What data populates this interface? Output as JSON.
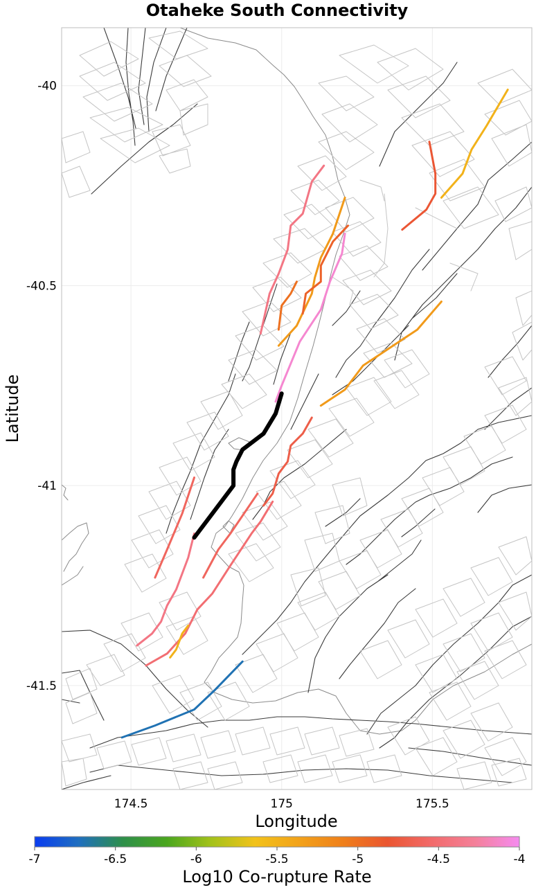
{
  "chart_data": {
    "type": "map",
    "title": "Otaheke South Connectivity",
    "xlabel": "Longitude",
    "ylabel": "Latitude",
    "xlim": [
      174.27,
      175.83
    ],
    "ylim": [
      -41.76,
      -39.855
    ],
    "xticks": [
      174.5,
      175,
      175.5
    ],
    "xtick_labels": [
      "174.5",
      "175",
      "175.5"
    ],
    "yticks": [
      -40,
      -40.5,
      -41,
      -41.5
    ],
    "ytick_labels": [
      "-40",
      "-40.5",
      "-41",
      "-41.5"
    ],
    "grid": true,
    "colorbar": {
      "label": "Log10 Co-rupture Rate",
      "range": [
        -7,
        -4
      ],
      "ticks": [
        -7,
        -6.5,
        -6,
        -5.5,
        -5,
        -4.5,
        -4
      ],
      "tick_labels": [
        "-7",
        "-6.5",
        "-6",
        "-5.5",
        "-5",
        "-4.5",
        "-4"
      ],
      "colors": [
        "#0a3cf0",
        "#1f6fbf",
        "#2e8f4a",
        "#4aa61e",
        "#a3c21a",
        "#f2c21a",
        "#f2a21a",
        "#ef7f1a",
        "#ea5530",
        "#f26a6a",
        "#f4809a",
        "#f58bf0"
      ]
    },
    "selected_fault": {
      "name": "Otaheke South",
      "color": "#000000",
      "points": [
        [
          175.0,
          -40.77
        ],
        [
          174.98,
          -40.82
        ],
        [
          174.94,
          -40.87
        ],
        [
          174.87,
          -40.91
        ],
        [
          174.85,
          -40.94
        ],
        [
          174.84,
          -40.96
        ],
        [
          174.84,
          -41.0
        ],
        [
          174.78,
          -41.06
        ],
        [
          174.71,
          -41.13
        ]
      ]
    },
    "corupture_faults": [
      {
        "log10_rate": -4.4,
        "points": [
          [
            175.14,
            -40.2
          ],
          [
            175.1,
            -40.24
          ],
          [
            175.07,
            -40.32
          ],
          [
            175.03,
            -40.35
          ],
          [
            175.02,
            -40.41
          ],
          [
            174.99,
            -40.47
          ],
          [
            174.96,
            -40.52
          ],
          [
            174.93,
            -40.62
          ]
        ]
      },
      {
        "log10_rate": -5.3,
        "points": [
          [
            175.21,
            -40.28
          ],
          [
            175.17,
            -40.37
          ],
          [
            175.13,
            -40.43
          ],
          [
            175.11,
            -40.48
          ],
          [
            175.1,
            -40.52
          ],
          [
            175.05,
            -40.6
          ],
          [
            174.99,
            -40.65
          ]
        ]
      },
      {
        "log10_rate": -4.9,
        "points": [
          [
            175.22,
            -40.35
          ],
          [
            175.17,
            -40.39
          ],
          [
            175.13,
            -40.45
          ],
          [
            175.13,
            -40.49
          ],
          [
            175.08,
            -40.52
          ],
          [
            175.07,
            -40.57
          ]
        ]
      },
      {
        "log10_rate": -4.1,
        "points": [
          [
            175.21,
            -40.37
          ],
          [
            175.2,
            -40.42
          ],
          [
            175.16,
            -40.49
          ],
          [
            175.13,
            -40.56
          ],
          [
            175.06,
            -40.64
          ],
          [
            175.0,
            -40.75
          ],
          [
            174.98,
            -40.79
          ]
        ]
      },
      {
        "log10_rate": -5.0,
        "points": [
          [
            175.05,
            -40.49
          ],
          [
            175.03,
            -40.52
          ],
          [
            175.0,
            -40.55
          ],
          [
            174.99,
            -40.61
          ]
        ]
      },
      {
        "log10_rate": -5.3,
        "points": [
          [
            175.53,
            -40.54
          ],
          [
            175.45,
            -40.61
          ],
          [
            175.39,
            -40.64
          ],
          [
            175.27,
            -40.7
          ],
          [
            175.21,
            -40.76
          ],
          [
            175.17,
            -40.78
          ],
          [
            175.13,
            -40.8
          ]
        ]
      },
      {
        "log10_rate": -4.7,
        "points": [
          [
            175.1,
            -40.83
          ],
          [
            175.07,
            -40.87
          ],
          [
            175.03,
            -40.9
          ],
          [
            175.02,
            -40.94
          ],
          [
            174.99,
            -40.97
          ],
          [
            174.97,
            -41.02
          ],
          [
            174.94,
            -41.05
          ]
        ]
      },
      {
        "log10_rate": -4.6,
        "points": [
          [
            174.92,
            -41.02
          ],
          [
            174.83,
            -41.12
          ],
          [
            174.79,
            -41.16
          ],
          [
            174.74,
            -41.23
          ]
        ]
      },
      {
        "log10_rate": -4.5,
        "points": [
          [
            174.97,
            -41.04
          ],
          [
            174.93,
            -41.09
          ],
          [
            174.9,
            -41.12
          ],
          [
            174.83,
            -41.2
          ],
          [
            174.77,
            -41.27
          ],
          [
            174.72,
            -41.31
          ],
          [
            174.68,
            -41.37
          ],
          [
            174.62,
            -41.42
          ],
          [
            174.55,
            -41.45
          ]
        ]
      },
      {
        "log10_rate": -4.6,
        "points": [
          [
            174.71,
            -40.98
          ],
          [
            174.67,
            -41.07
          ],
          [
            174.62,
            -41.16
          ],
          [
            174.58,
            -41.23
          ]
        ]
      },
      {
        "log10_rate": -4.4,
        "points": [
          [
            174.71,
            -41.12
          ],
          [
            174.69,
            -41.18
          ],
          [
            174.65,
            -41.26
          ],
          [
            174.62,
            -41.3
          ],
          [
            174.6,
            -41.34
          ],
          [
            174.57,
            -41.37
          ],
          [
            174.52,
            -41.4
          ]
        ]
      },
      {
        "log10_rate": -5.5,
        "points": [
          [
            174.69,
            -41.35
          ],
          [
            174.67,
            -41.37
          ],
          [
            174.65,
            -41.41
          ],
          [
            174.63,
            -41.43
          ]
        ]
      },
      {
        "log10_rate": -6.7,
        "points": [
          [
            174.87,
            -41.44
          ],
          [
            174.78,
            -41.51
          ],
          [
            174.71,
            -41.56
          ],
          [
            174.58,
            -41.6
          ],
          [
            174.47,
            -41.63
          ]
        ]
      },
      {
        "log10_rate": -4.8,
        "points": [
          [
            175.49,
            -40.14
          ],
          [
            175.51,
            -40.22
          ],
          [
            175.51,
            -40.27
          ],
          [
            175.48,
            -40.31
          ],
          [
            175.4,
            -40.36
          ]
        ]
      },
      {
        "log10_rate": -5.5,
        "points": [
          [
            175.75,
            -40.01
          ],
          [
            175.68,
            -40.1
          ],
          [
            175.63,
            -40.16
          ],
          [
            175.6,
            -40.22
          ],
          [
            175.53,
            -40.28
          ]
        ]
      }
    ]
  }
}
